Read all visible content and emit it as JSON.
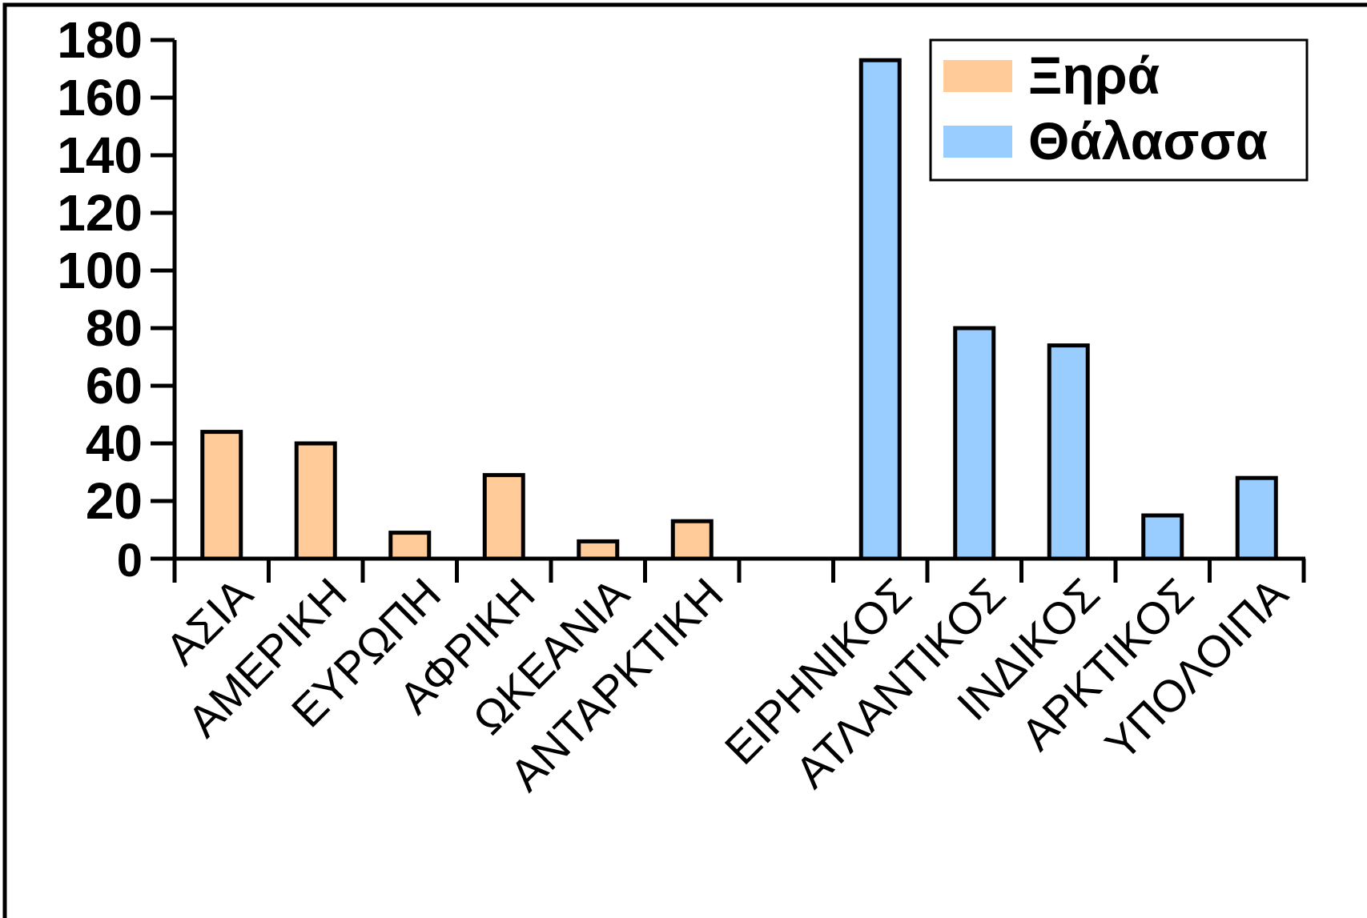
{
  "chart_data": {
    "type": "bar",
    "categories": [
      "ΑΣΙΑ",
      "ΑΜΕΡΙΚΗ",
      "ΕΥΡΩΠΗ",
      "ΑΦΡΙΚΗ",
      "ΩΚΕΑΝΙΑ",
      "ΑΝΤΑΡΚΤΙΚΗ",
      "",
      "ΕΙΡΗΝΙΚΟΣ",
      "ΑΤΛΑΝΤΙΚΟΣ",
      "ΙΝΔΙΚΟΣ",
      "ΑΡΚΤΙΚΟΣ",
      "ΥΠΟΛΟΙΠΑ"
    ],
    "series": [
      {
        "name": "Ξηρά",
        "color": "#FFCC99",
        "values": [
          44,
          40,
          9,
          29,
          6,
          13,
          null,
          null,
          null,
          null,
          null,
          null
        ]
      },
      {
        "name": "Θάλασσα",
        "color": "#99CCFF",
        "values": [
          null,
          null,
          null,
          null,
          null,
          null,
          null,
          173,
          80,
          74,
          15,
          28
        ]
      }
    ],
    "title": "",
    "xlabel": "",
    "ylabel": "",
    "ylim": [
      0,
      180
    ],
    "yticks": [
      "0",
      "20",
      "40",
      "60",
      "80",
      "100",
      "120",
      "140",
      "160",
      "180"
    ],
    "grid": false,
    "legend_position": "top-right"
  }
}
